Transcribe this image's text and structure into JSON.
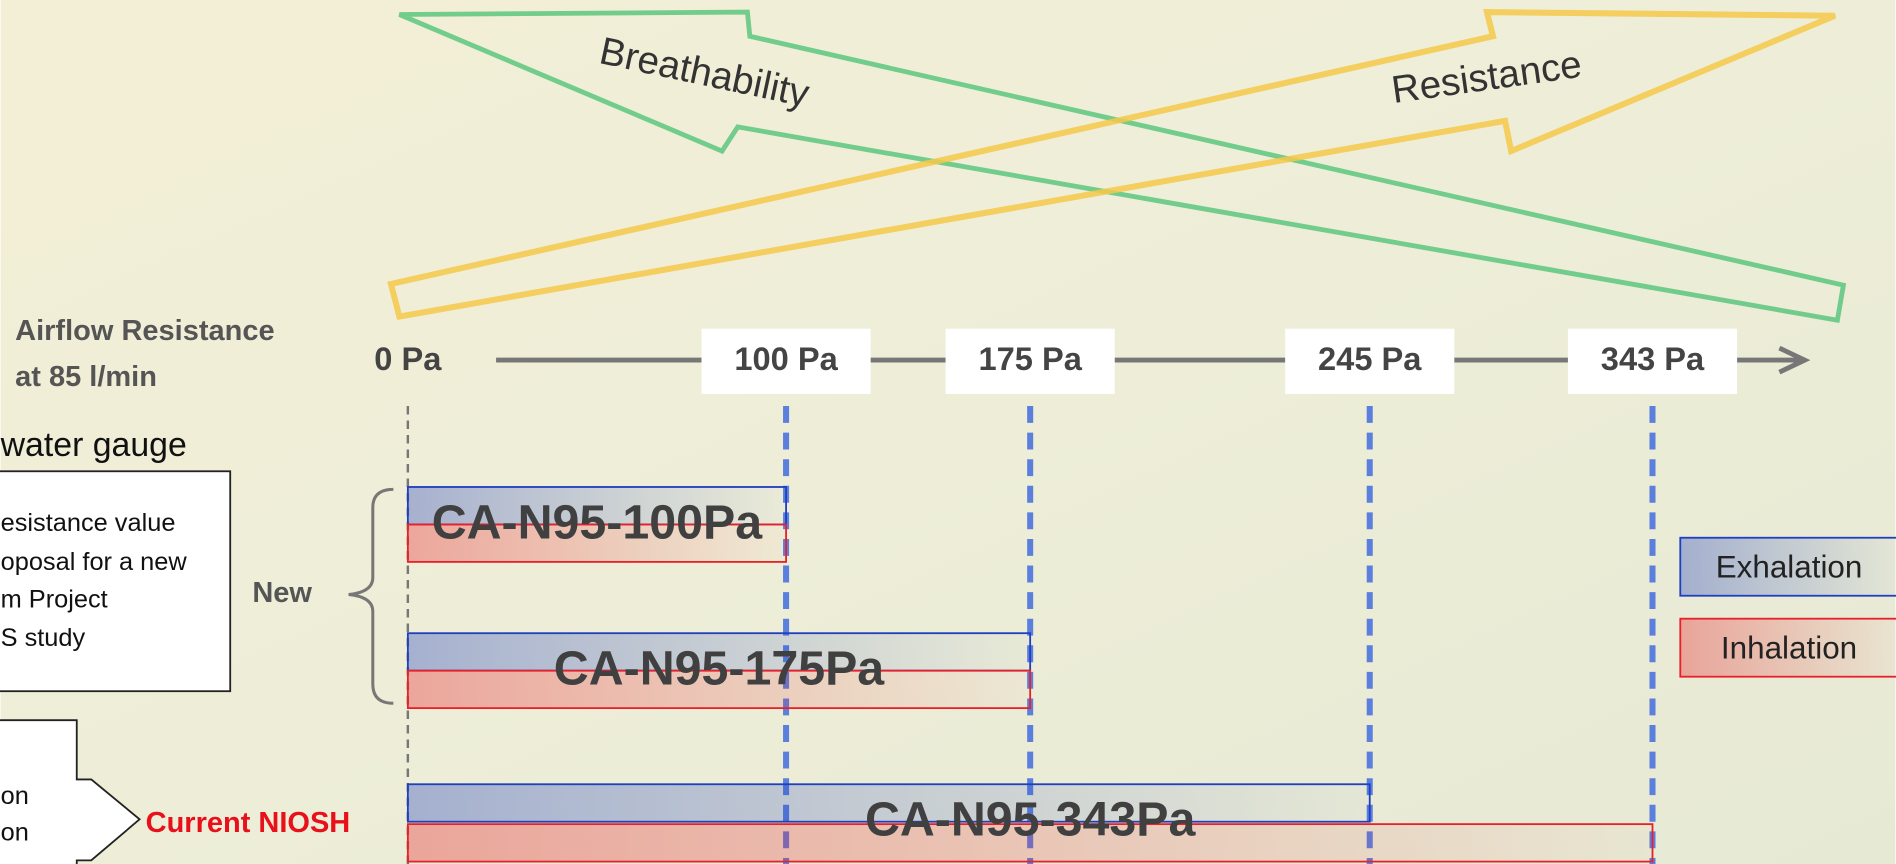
{
  "chart_data": {
    "type": "bar",
    "orientation": "horizontal",
    "categories": [
      "CA-N95-100Pa",
      "CA-N95-175Pa",
      "CA-N95-343Pa"
    ],
    "series": [
      {
        "name": "Exhalation",
        "color": "#1f3fbf",
        "values": [
          100,
          175,
          245
        ]
      },
      {
        "name": "Inhalation",
        "color": "#e8202a",
        "values": [
          100,
          175,
          343
        ]
      }
    ],
    "xticks": [
      {
        "value": 0,
        "label": "0 Pa"
      },
      {
        "value": 100,
        "label": "100 Pa"
      },
      {
        "value": 175,
        "label": "175 Pa"
      },
      {
        "value": 245,
        "label": "245 Pa"
      },
      {
        "value": 343,
        "label": "343 Pa"
      }
    ],
    "axis_title": [
      "Airflow Resistance",
      "at 85 l/min"
    ],
    "arrow_labels": [
      "Breathability",
      "Resistance"
    ],
    "unit_note": "water gauge",
    "notes": [
      "esistance value",
      "oposal for a new",
      "m Project",
      "S study"
    ],
    "side_notes": [
      "on",
      "on"
    ],
    "group_label": "New",
    "reference_label": "Current NIOSH",
    "legend": "right"
  }
}
